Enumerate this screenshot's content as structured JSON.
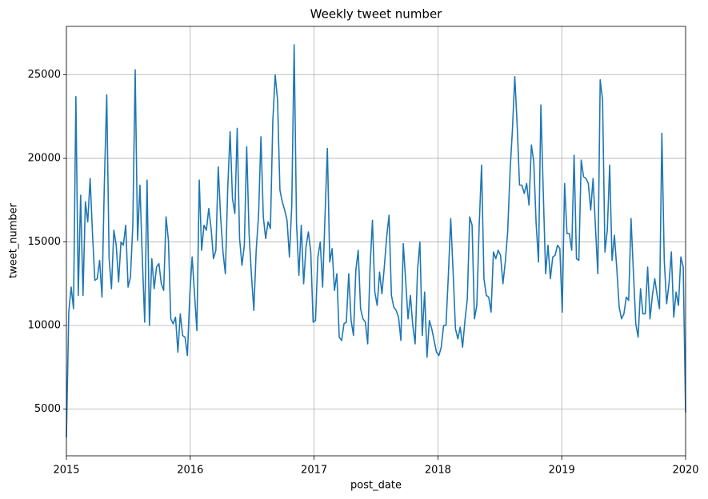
{
  "chart_data": {
    "type": "line",
    "title": "Weekly tweet number",
    "x_label": "post_date",
    "y_label": "tweet_number",
    "color": "#1f77b4",
    "grid": true,
    "xlim": [
      2015,
      2020
    ],
    "xticks": [
      2015,
      2016,
      2017,
      2018,
      2019,
      2020
    ],
    "ylim": [
      2200,
      27900
    ],
    "yticks": [
      5000,
      10000,
      15000,
      20000,
      25000
    ],
    "values": [
      3300,
      10800,
      12300,
      11000,
      23700,
      11800,
      17800,
      11800,
      17400,
      16200,
      18800,
      15500,
      12700,
      12800,
      13900,
      11700,
      18500,
      23800,
      14000,
      12200,
      15700,
      14800,
      12600,
      15000,
      14800,
      16000,
      12300,
      12900,
      16000,
      25300,
      15100,
      18400,
      14000,
      10200,
      18700,
      10000,
      14000,
      12200,
      13500,
      13700,
      12500,
      12100,
      16500,
      15100,
      10400,
      10100,
      10500,
      8400,
      10700,
      9400,
      9300,
      8200,
      11800,
      14100,
      11900,
      9700,
      18700,
      14500,
      16000,
      15700,
      17000,
      15800,
      14000,
      14500,
      19500,
      16500,
      14400,
      13100,
      18200,
      21600,
      17600,
      16700,
      21800,
      15200,
      13600,
      14800,
      20700,
      15500,
      13000,
      10900,
      14500,
      16600,
      21300,
      16500,
      15200,
      16200,
      15800,
      22200,
      25000,
      23500,
      18100,
      17400,
      16900,
      16300,
      14100,
      17200,
      26800,
      16100,
      13000,
      16000,
      12500,
      14700,
      15600,
      14400,
      10200,
      10300,
      14100,
      15000,
      12300,
      16500,
      20600,
      13800,
      14600,
      12100,
      13100,
      9300,
      9100,
      10100,
      10200,
      13100,
      10300,
      9400,
      13300,
      14500,
      11000,
      10400,
      10200,
      8900,
      13500,
      16300,
      12000,
      11200,
      13200,
      11900,
      13500,
      15300,
      16600,
      11800,
      11100,
      10900,
      10500,
      9100,
      14900,
      12700,
      10400,
      11800,
      10000,
      8900,
      13300,
      15000,
      9400,
      12000,
      8100,
      10300,
      9800,
      9100,
      8400,
      8200,
      8700,
      10000,
      10000,
      13000,
      16400,
      13200,
      9800,
      9200,
      9900,
      8700,
      10300,
      11600,
      16500,
      16000,
      10400,
      11200,
      16000,
      19600,
      12800,
      11800,
      11700,
      10800,
      14400,
      14000,
      14500,
      14200,
      12500,
      13800,
      15600,
      19200,
      21700,
      24900,
      22000,
      18400,
      18400,
      17900,
      18500,
      17200,
      20800,
      19800,
      16100,
      13800,
      23200,
      18000,
      13100,
      14800,
      12800,
      14100,
      14200,
      14800,
      14600,
      10800,
      18500,
      15500,
      15500,
      14500,
      20200,
      14000,
      13900,
      19900,
      18900,
      18800,
      18500,
      16900,
      18800,
      15900,
      13100,
      24700,
      23500,
      14400,
      15700,
      19600,
      13900,
      15400,
      13400,
      11100,
      10400,
      10700,
      11700,
      11500,
      16400,
      13200,
      10100,
      9300,
      12200,
      10700,
      10700,
      13500,
      10400,
      11800,
      12800,
      11800,
      11000,
      21500,
      13900,
      11300,
      12500,
      14400,
      10500,
      12000,
      11200,
      14100,
      13500,
      4800
    ]
  }
}
